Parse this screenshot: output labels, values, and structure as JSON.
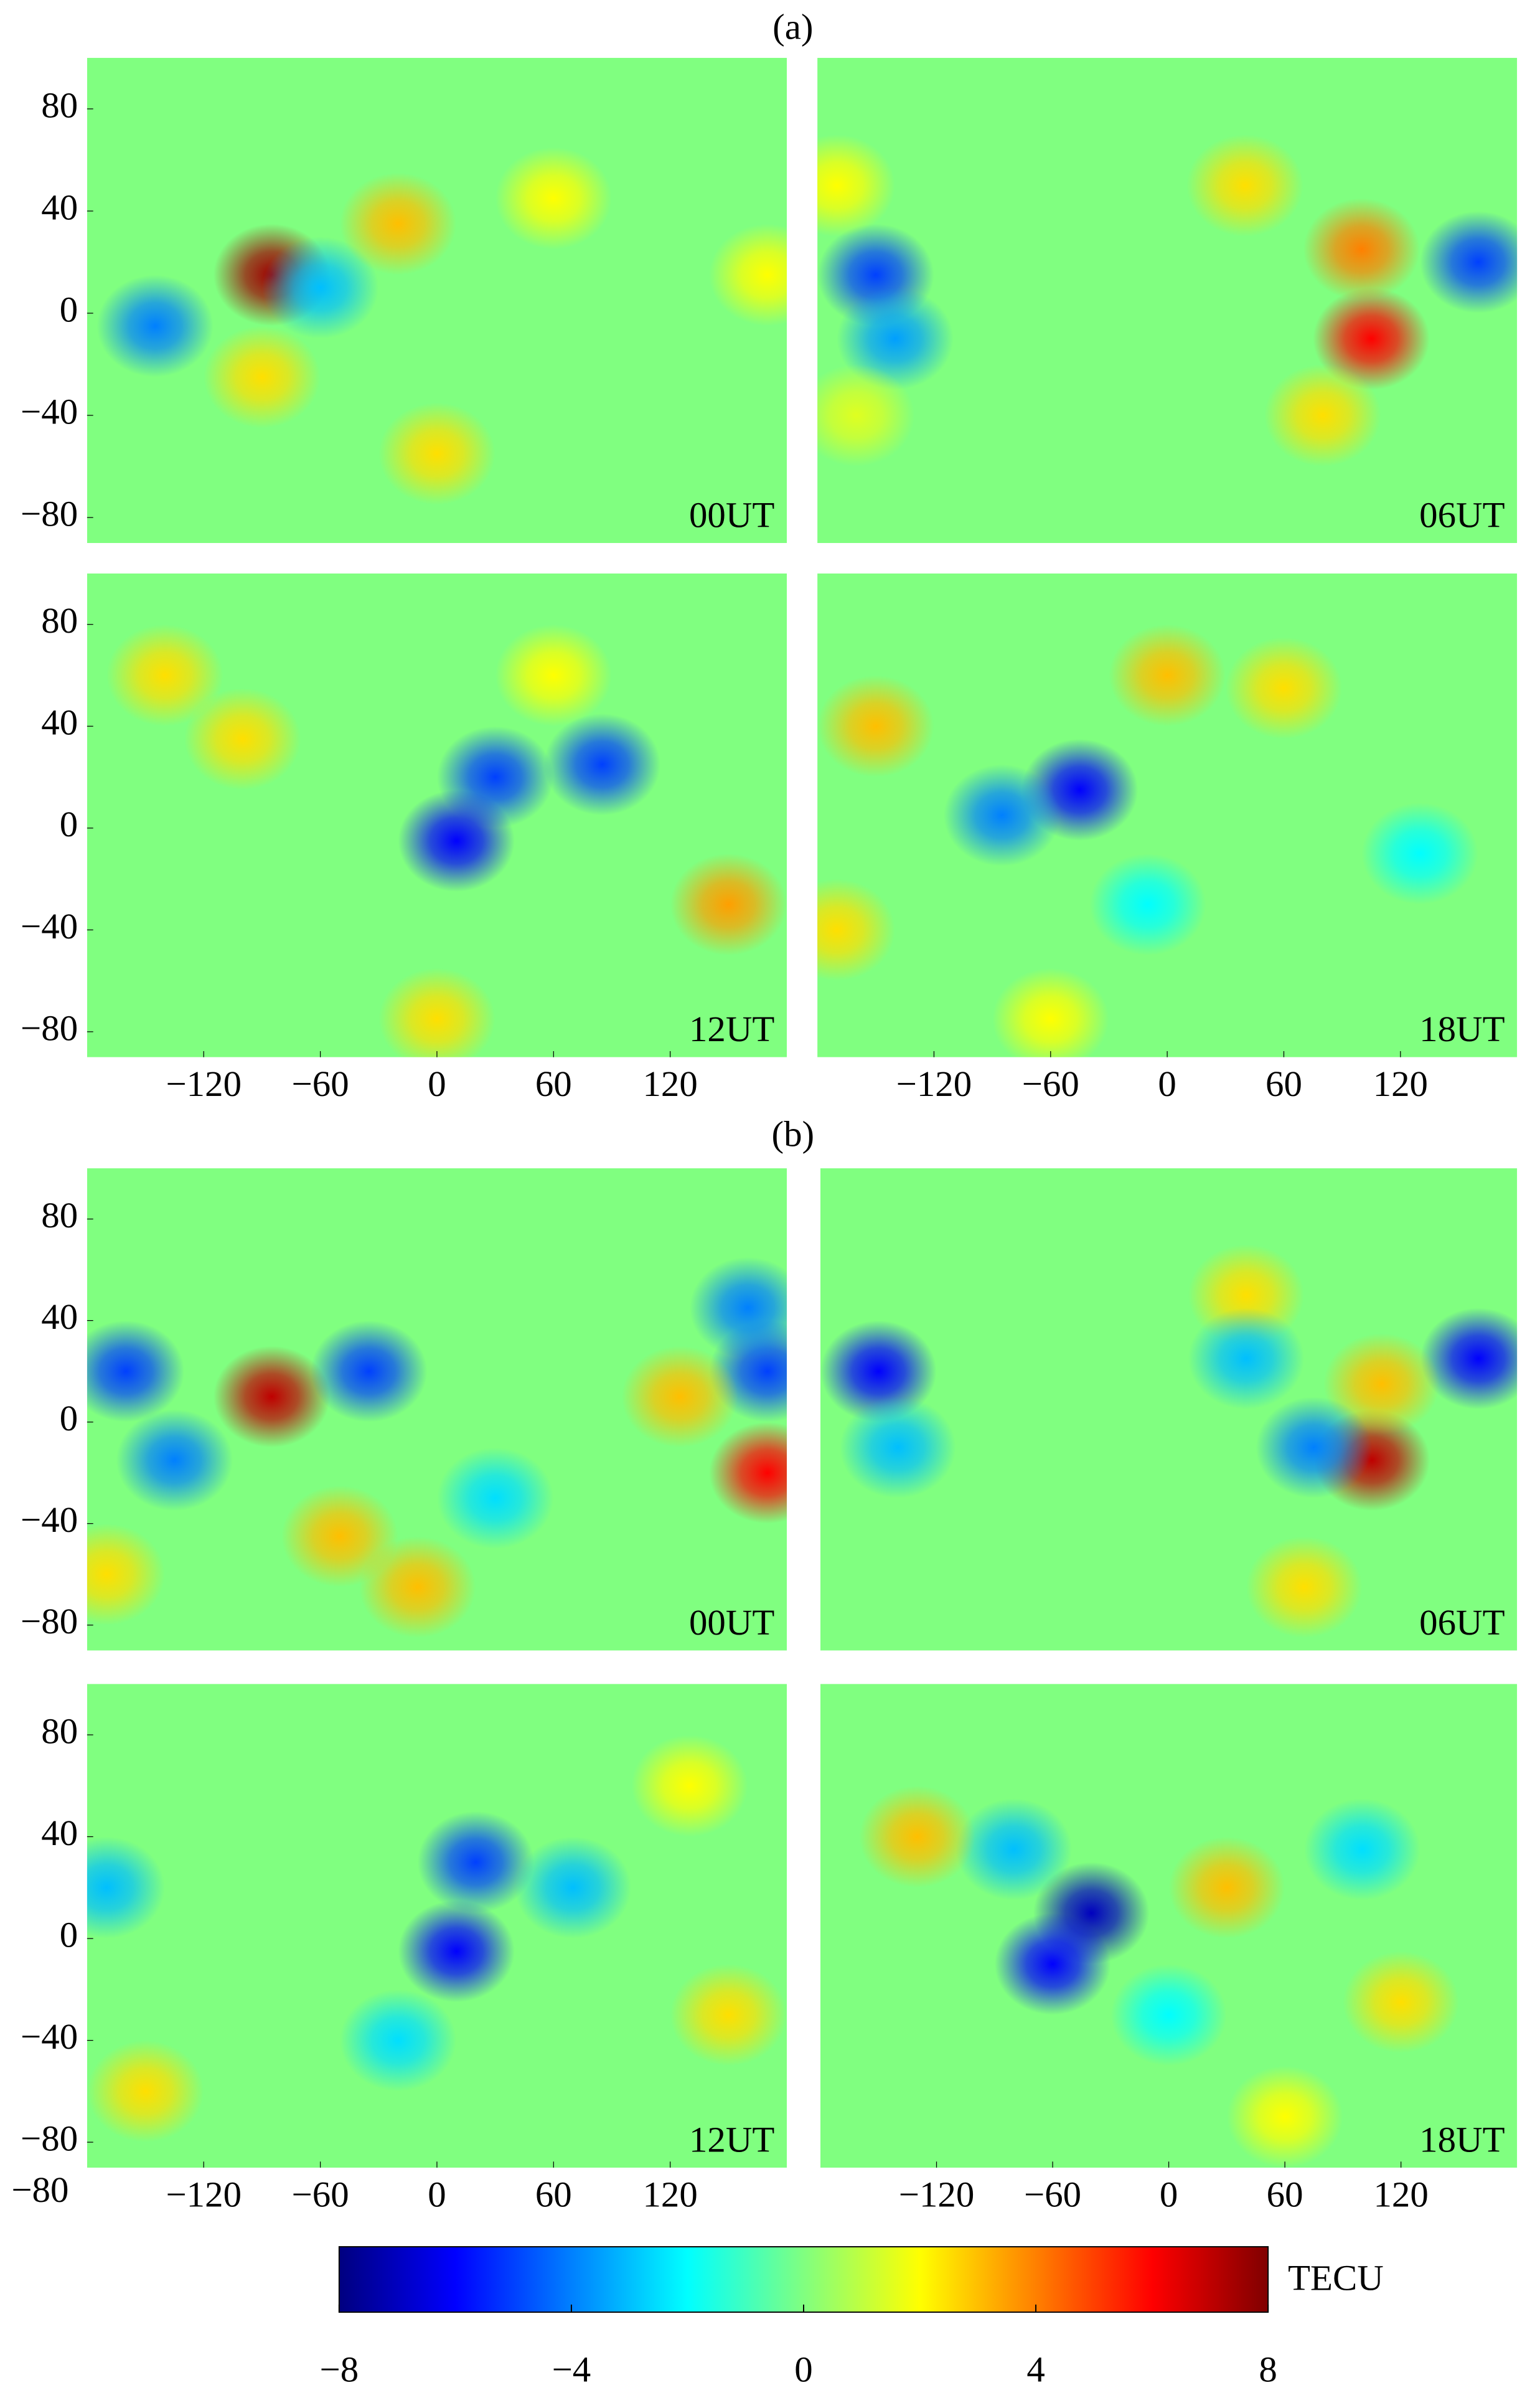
{
  "chart_data": {
    "type": "map-heatmap",
    "xlim": [
      -180,
      180
    ],
    "ylim": [
      -90,
      100
    ],
    "xticks": [
      {
        "value": -120,
        "label": "−120"
      },
      {
        "value": -60,
        "label": "−60"
      },
      0,
      60,
      120
    ],
    "yticks": [
      80,
      40,
      0,
      {
        "value": -40,
        "label": "−40"
      },
      {
        "value": -80,
        "label": "−80"
      }
    ],
    "annotation": "−80",
    "colorbar": {
      "lim": [
        -8,
        8
      ],
      "ticks": [
        {
          "value": -8,
          "label": "−8"
        },
        {
          "value": -4,
          "label": "−4"
        },
        0,
        4,
        8
      ],
      "label": "TECU"
    },
    "groups": [
      {
        "label": "(a)",
        "panels": [
          {
            "time": "00UT",
            "anomalies": [
              {
                "lon": -85,
                "lat": 15,
                "value": 7.5
              },
              {
                "lon": -145,
                "lat": -5,
                "value": -4
              },
              {
                "lon": -60,
                "lat": 10,
                "value": -3
              },
              {
                "lon": -20,
                "lat": 35,
                "value": 3
              },
              {
                "lon": -90,
                "lat": -25,
                "value": 2.5
              },
              {
                "lon": 0,
                "lat": -55,
                "value": 2.5
              },
              {
                "lon": 170,
                "lat": 15,
                "value": 2
              },
              {
                "lon": 60,
                "lat": 45,
                "value": 2
              }
            ]
          },
          {
            "time": "06UT",
            "anomalies": [
              {
                "lon": -150,
                "lat": 15,
                "value": -5
              },
              {
                "lon": -140,
                "lat": -10,
                "value": -3.5
              },
              {
                "lon": 160,
                "lat": 20,
                "value": -5
              },
              {
                "lon": 105,
                "lat": -10,
                "value": 6
              },
              {
                "lon": 100,
                "lat": 25,
                "value": 4
              },
              {
                "lon": 40,
                "lat": 50,
                "value": 2.5
              },
              {
                "lon": -170,
                "lat": 50,
                "value": 2
              },
              {
                "lon": 80,
                "lat": -40,
                "value": 2.5
              },
              {
                "lon": -160,
                "lat": -40,
                "value": 1.5
              }
            ]
          },
          {
            "time": "12UT",
            "anomalies": [
              {
                "lon": 30,
                "lat": 20,
                "value": -5
              },
              {
                "lon": 10,
                "lat": -5,
                "value": -6
              },
              {
                "lon": 85,
                "lat": 25,
                "value": -5
              },
              {
                "lon": 150,
                "lat": -30,
                "value": 3.5
              },
              {
                "lon": -140,
                "lat": 60,
                "value": 2.5
              },
              {
                "lon": -100,
                "lat": 35,
                "value": 2.5
              },
              {
                "lon": 60,
                "lat": 60,
                "value": 2
              },
              {
                "lon": 0,
                "lat": -75,
                "value": 2.5
              }
            ]
          },
          {
            "time": "18UT",
            "anomalies": [
              {
                "lon": -45,
                "lat": 15,
                "value": -6
              },
              {
                "lon": -85,
                "lat": 5,
                "value": -4
              },
              {
                "lon": -170,
                "lat": -40,
                "value": 2.5
              },
              {
                "lon": 0,
                "lat": 60,
                "value": 3
              },
              {
                "lon": -150,
                "lat": 40,
                "value": 3
              },
              {
                "lon": 60,
                "lat": 55,
                "value": 2.5
              },
              {
                "lon": -10,
                "lat": -30,
                "value": -2
              },
              {
                "lon": 130,
                "lat": -10,
                "value": -2
              },
              {
                "lon": -60,
                "lat": -75,
                "value": 2
              }
            ]
          }
        ]
      },
      {
        "label": "(b)",
        "panels": [
          {
            "time": "00UT",
            "anomalies": [
              {
                "lon": -85,
                "lat": 10,
                "value": 7
              },
              {
                "lon": -160,
                "lat": 20,
                "value": -5
              },
              {
                "lon": 170,
                "lat": 20,
                "value": -5
              },
              {
                "lon": 170,
                "lat": -20,
                "value": 6
              },
              {
                "lon": 125,
                "lat": 10,
                "value": 3
              },
              {
                "lon": -35,
                "lat": 20,
                "value": -5
              },
              {
                "lon": -135,
                "lat": -15,
                "value": -4
              },
              {
                "lon": -50,
                "lat": -45,
                "value": 3
              },
              {
                "lon": -10,
                "lat": -65,
                "value": 3
              },
              {
                "lon": 30,
                "lat": -30,
                "value": -2.5
              },
              {
                "lon": -170,
                "lat": -60,
                "value": 2.5
              },
              {
                "lon": 160,
                "lat": 45,
                "value": -4
              }
            ]
          },
          {
            "time": "06UT",
            "anomalies": [
              {
                "lon": -150,
                "lat": 20,
                "value": -6
              },
              {
                "lon": 160,
                "lat": 25,
                "value": -6
              },
              {
                "lon": 105,
                "lat": -15,
                "value": 7
              },
              {
                "lon": 110,
                "lat": 15,
                "value": 3
              },
              {
                "lon": 75,
                "lat": -10,
                "value": -4
              },
              {
                "lon": 40,
                "lat": 50,
                "value": 2.5
              },
              {
                "lon": 70,
                "lat": -65,
                "value": 2.5
              },
              {
                "lon": -140,
                "lat": -10,
                "value": -3
              },
              {
                "lon": 40,
                "lat": 25,
                "value": -3
              }
            ]
          },
          {
            "time": "12UT",
            "anomalies": [
              {
                "lon": 20,
                "lat": 30,
                "value": -5
              },
              {
                "lon": 10,
                "lat": -5,
                "value": -6
              },
              {
                "lon": 70,
                "lat": 20,
                "value": -3
              },
              {
                "lon": 150,
                "lat": -30,
                "value": 2.5
              },
              {
                "lon": -20,
                "lat": -40,
                "value": -2.5
              },
              {
                "lon": -150,
                "lat": -60,
                "value": 2.5
              },
              {
                "lon": 130,
                "lat": 60,
                "value": 2
              },
              {
                "lon": -170,
                "lat": 20,
                "value": -3
              }
            ]
          },
          {
            "time": "18UT",
            "anomalies": [
              {
                "lon": -40,
                "lat": 10,
                "value": -7
              },
              {
                "lon": -60,
                "lat": -10,
                "value": -6
              },
              {
                "lon": -80,
                "lat": 35,
                "value": -3
              },
              {
                "lon": -130,
                "lat": 40,
                "value": 3
              },
              {
                "lon": 0,
                "lat": -30,
                "value": -2
              },
              {
                "lon": 30,
                "lat": 20,
                "value": 3
              },
              {
                "lon": 120,
                "lat": -25,
                "value": 2.5
              },
              {
                "lon": 100,
                "lat": 35,
                "value": -2.5
              },
              {
                "lon": 60,
                "lat": -70,
                "value": 2
              }
            ]
          }
        ]
      }
    ]
  }
}
